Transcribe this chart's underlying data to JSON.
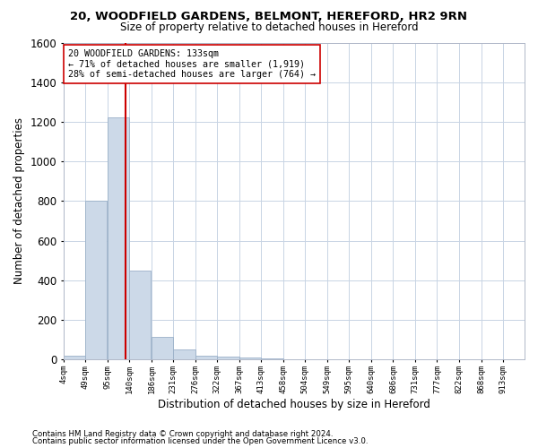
{
  "title1": "20, WOODFIELD GARDENS, BELMONT, HEREFORD, HR2 9RN",
  "title2": "Size of property relative to detached houses in Hereford",
  "xlabel": "Distribution of detached houses by size in Hereford",
  "ylabel": "Number of detached properties",
  "footnote1": "Contains HM Land Registry data © Crown copyright and database right 2024.",
  "footnote2": "Contains public sector information licensed under the Open Government Licence v3.0.",
  "annotation_line1": "20 WOODFIELD GARDENS: 133sqm",
  "annotation_line2": "← 71% of detached houses are smaller (1,919)",
  "annotation_line3": "28% of semi-detached houses are larger (764) →",
  "bar_color": "#ccd9e8",
  "bar_edge_color": "#9ab0c8",
  "grid_color": "#c8d4e4",
  "red_line_color": "#cc0000",
  "categories": [
    "4sqm",
    "49sqm",
    "95sqm",
    "140sqm",
    "186sqm",
    "231sqm",
    "276sqm",
    "322sqm",
    "367sqm",
    "413sqm",
    "458sqm",
    "504sqm",
    "549sqm",
    "595sqm",
    "640sqm",
    "686sqm",
    "731sqm",
    "777sqm",
    "822sqm",
    "868sqm",
    "913sqm"
  ],
  "bin_starts": [
    4,
    49,
    95,
    140,
    186,
    231,
    276,
    322,
    367,
    413,
    458,
    504,
    549,
    595,
    640,
    686,
    731,
    777,
    822,
    868,
    913
  ],
  "bin_width": 45,
  "values": [
    20,
    800,
    1220,
    450,
    115,
    50,
    20,
    15,
    10,
    5,
    0,
    0,
    0,
    0,
    0,
    0,
    0,
    0,
    0,
    0,
    0
  ],
  "ylim": [
    0,
    1600
  ],
  "yticks": [
    0,
    200,
    400,
    600,
    800,
    1000,
    1200,
    1400,
    1600
  ],
  "red_line_x": 133
}
